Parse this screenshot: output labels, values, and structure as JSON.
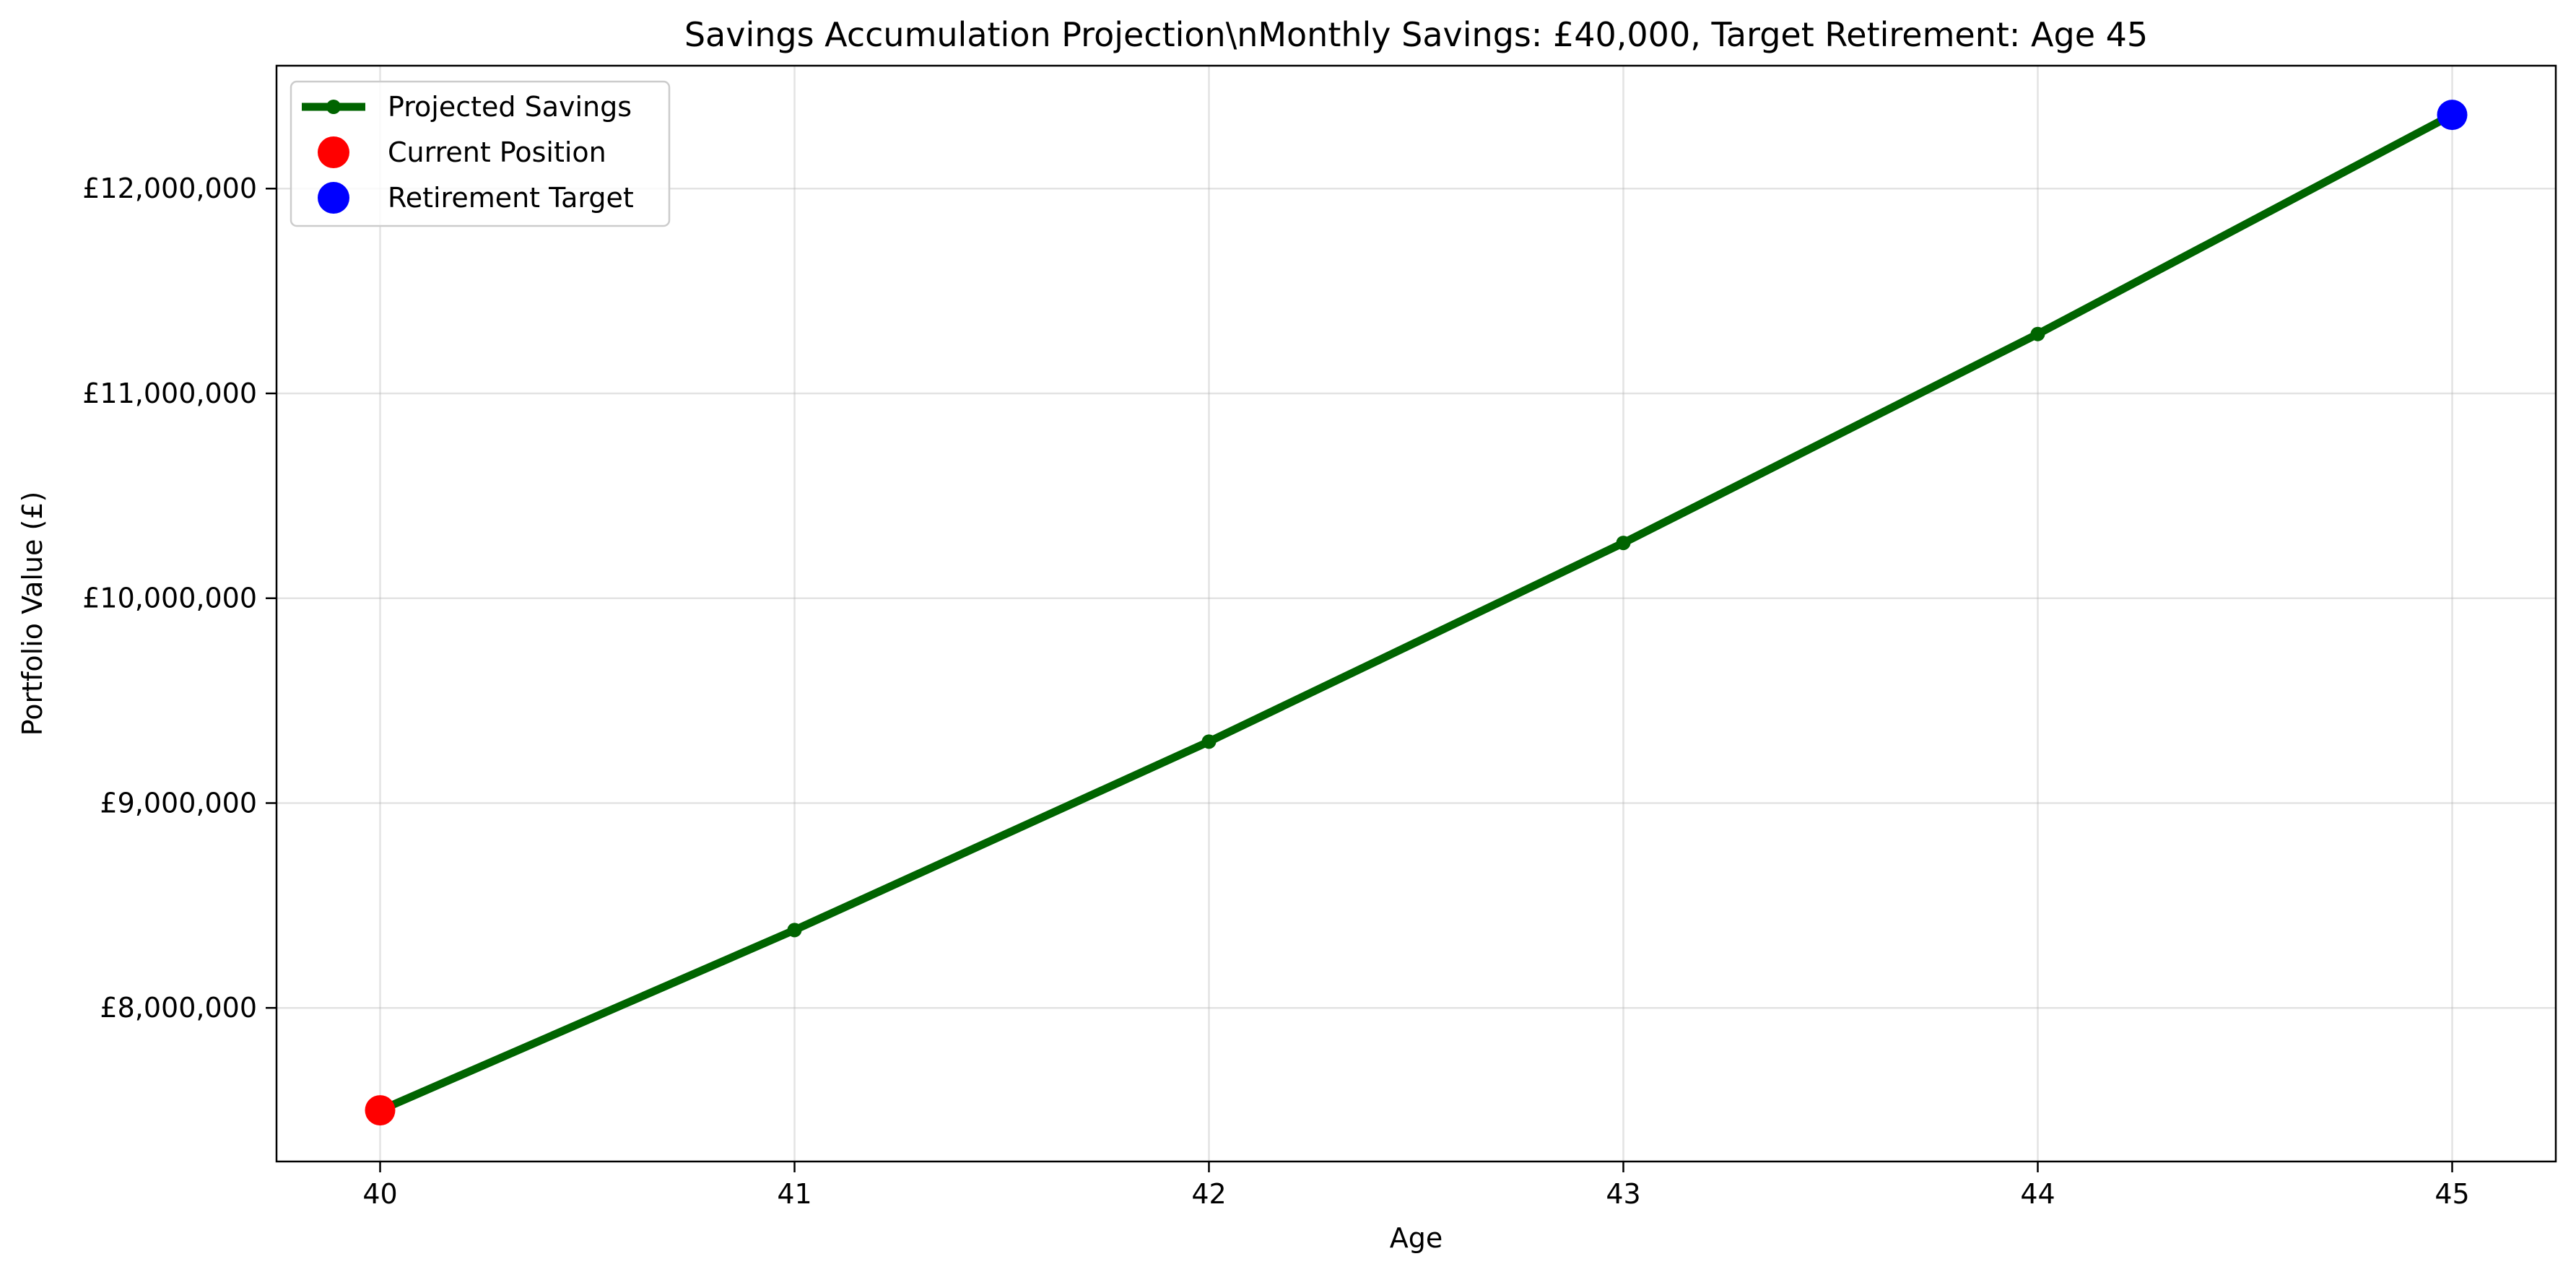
{
  "chart_data": {
    "type": "line",
    "title": "Savings Accumulation Projection\\nMonthly Savings: £40,000, Target Retirement: Age 45",
    "xlabel": "Age",
    "ylabel": "Portfolio Value (£)",
    "xlim": [
      39.75,
      45.25
    ],
    "ylim": [
      7250000,
      12600000
    ],
    "x_ticks": [
      40,
      41,
      42,
      43,
      44,
      45
    ],
    "x_tick_labels": [
      "40",
      "41",
      "42",
      "43",
      "44",
      "45"
    ],
    "y_ticks": [
      8000000,
      9000000,
      10000000,
      11000000,
      12000000
    ],
    "y_tick_labels": [
      "£8,000,000",
      "£9,000,000",
      "£10,000,000",
      "£11,000,000",
      "£12,000,000"
    ],
    "grid": true,
    "legend_position": "top-left",
    "series": [
      {
        "name": "Projected Savings",
        "kind": "line-with-markers",
        "color": "#006400",
        "x": [
          40,
          41,
          42,
          43,
          44,
          45
        ],
        "y": [
          7500000,
          8380000,
          9300000,
          10270000,
          11290000,
          12360000
        ]
      },
      {
        "name": "Current Position",
        "kind": "scatter",
        "color": "#ff0000",
        "x": [
          40
        ],
        "y": [
          7500000
        ]
      },
      {
        "name": "Retirement Target",
        "kind": "scatter",
        "color": "#0000ff",
        "x": [
          45
        ],
        "y": [
          12360000
        ]
      }
    ]
  }
}
